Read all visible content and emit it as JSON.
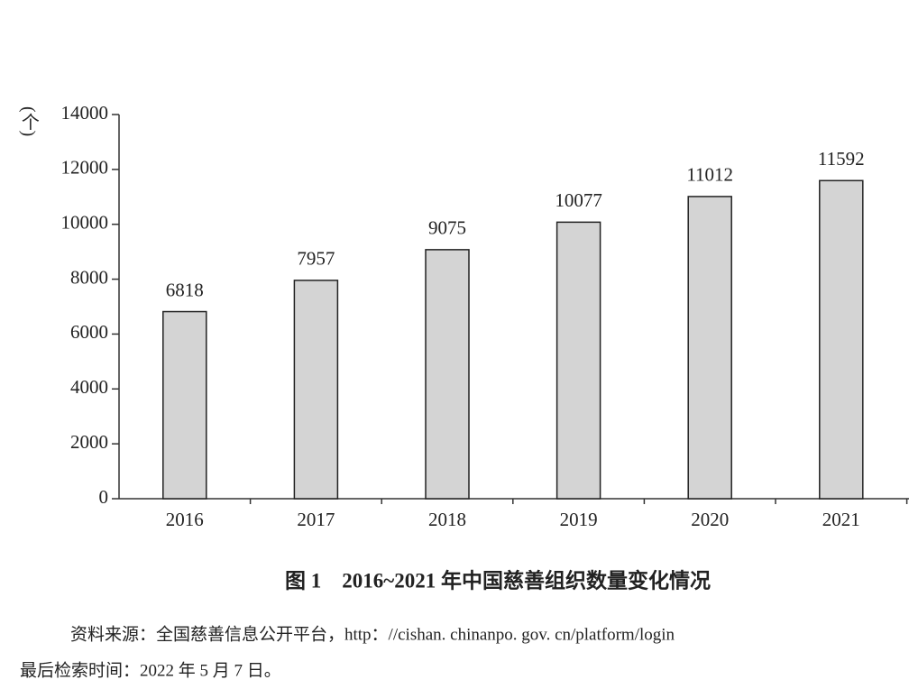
{
  "chart_data": {
    "type": "bar",
    "title": "图 1　2016~2021 年中国慈善组织数量变化情况",
    "y_label": "(个)",
    "categories": [
      "2016",
      "2017",
      "2018",
      "2019",
      "2020",
      "2021"
    ],
    "values": [
      6818,
      7957,
      9075,
      10077,
      11012,
      11592
    ],
    "color": "#d4d4d4",
    "ylim": [
      0,
      14000
    ],
    "yticks": [
      0,
      2000,
      4000,
      6000,
      8000,
      10000,
      12000,
      14000
    ],
    "grid": false,
    "source": "资料来源：全国慈善信息公开平台，http：//cishan. chinanpo. gov. cn/platform/login",
    "retrieved": "最后检索时间：2022 年 5 月 7 日。"
  }
}
